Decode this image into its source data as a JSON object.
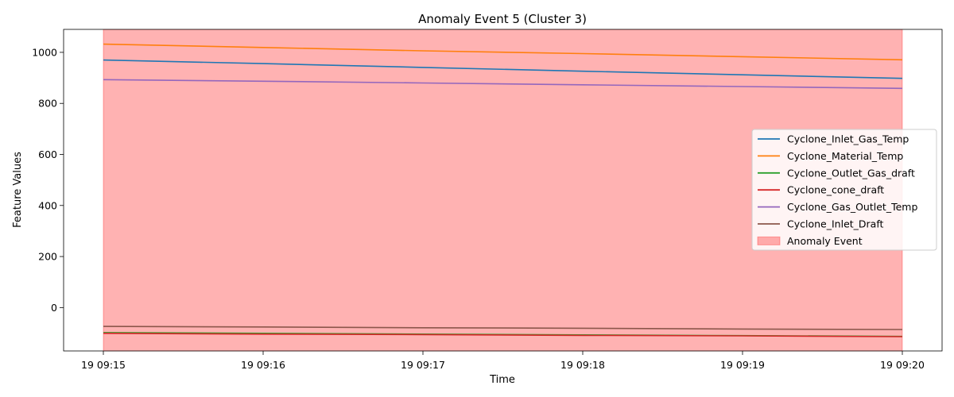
{
  "chart_data": {
    "type": "line",
    "title": "Anomaly Event 5 (Cluster 3)",
    "xlabel": "Time",
    "ylabel": "Feature Values",
    "x": [
      "19 09:15",
      "19 09:16",
      "19 09:17",
      "19 09:18",
      "19 09:19",
      "19 09:20"
    ],
    "ylim": [
      -170,
      1090
    ],
    "yticks": [
      0,
      200,
      400,
      600,
      800,
      1000
    ],
    "grid": false,
    "legend_position": "center-right",
    "series": [
      {
        "name": "Cyclone_Inlet_Gas_Temp",
        "color": "#1f77b4",
        "values": [
          970,
          956,
          941,
          926,
          912,
          898
        ]
      },
      {
        "name": "Cyclone_Material_Temp",
        "color": "#ff7f0e",
        "values": [
          1032,
          1019,
          1006,
          995,
          983,
          971
        ]
      },
      {
        "name": "Cyclone_Outlet_Gas_draft",
        "color": "#2ca02c",
        "values": [
          -98,
          -101,
          -104,
          -107,
          -110,
          -113
        ]
      },
      {
        "name": "Cyclone_cone_draft",
        "color": "#d62728",
        "values": [
          -101,
          -104,
          -106,
          -109,
          -111,
          -114
        ]
      },
      {
        "name": "Cyclone_Gas_Outlet_Temp",
        "color": "#9467bd",
        "values": [
          893,
          887,
          880,
          873,
          866,
          859
        ]
      },
      {
        "name": "Cyclone_Inlet_Draft",
        "color": "#8c564b",
        "values": [
          -74,
          -76,
          -79,
          -81,
          -84,
          -86
        ]
      }
    ],
    "anomaly": {
      "label": "Anomaly Event",
      "color": "#ff0000",
      "alpha": 0.3,
      "x_start": "19 09:15",
      "x_end": "19 09:20"
    }
  }
}
